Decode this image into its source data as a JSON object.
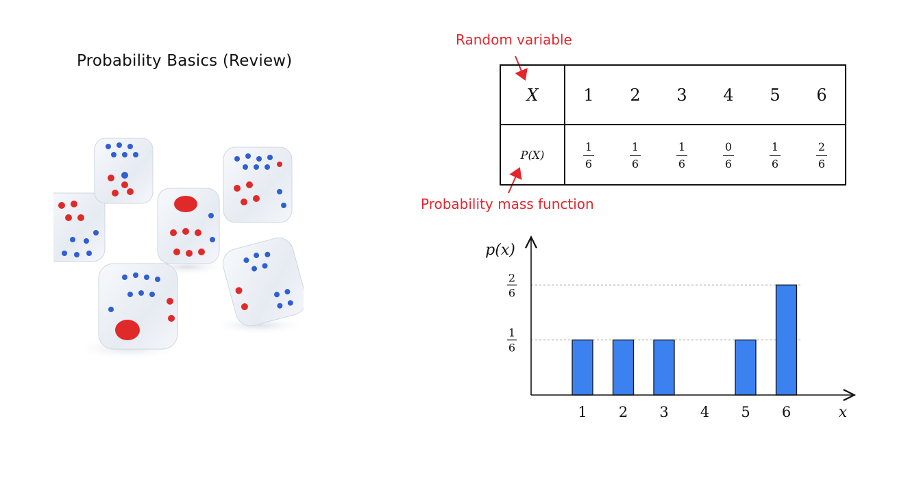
{
  "slide": {
    "title": "Probability Basics (Review)",
    "annotations": {
      "random_variable": "Random variable",
      "pmf": "Probability mass function"
    },
    "accent_color": "#e3262c"
  },
  "table": {
    "row1_header": "X",
    "row2_header": "P(X)",
    "values": [
      "1",
      "2",
      "3",
      "4",
      "5",
      "6"
    ],
    "probabilities": [
      {
        "num": "1",
        "den": "6"
      },
      {
        "num": "1",
        "den": "6"
      },
      {
        "num": "1",
        "den": "6"
      },
      {
        "num": "0",
        "den": "6"
      },
      {
        "num": "1",
        "den": "6"
      },
      {
        "num": "2",
        "den": "6"
      }
    ]
  },
  "image": {
    "subject": "transparent dice with red and blue pips"
  },
  "chart_data": {
    "type": "bar",
    "categories": [
      "1",
      "2",
      "3",
      "4",
      "5",
      "6"
    ],
    "values": [
      0.1667,
      0.1667,
      0.1667,
      0,
      0.1667,
      0.3333
    ],
    "xlabel": "x",
    "ylabel": "p(x)",
    "ylim": [
      0,
      0.45
    ],
    "yticks": [
      {
        "value": 0.1667,
        "num": "1",
        "den": "6"
      },
      {
        "value": 0.3333,
        "num": "2",
        "den": "6"
      }
    ],
    "bar_color": "#3b82f0",
    "grid": "dashed guides at tick values"
  }
}
